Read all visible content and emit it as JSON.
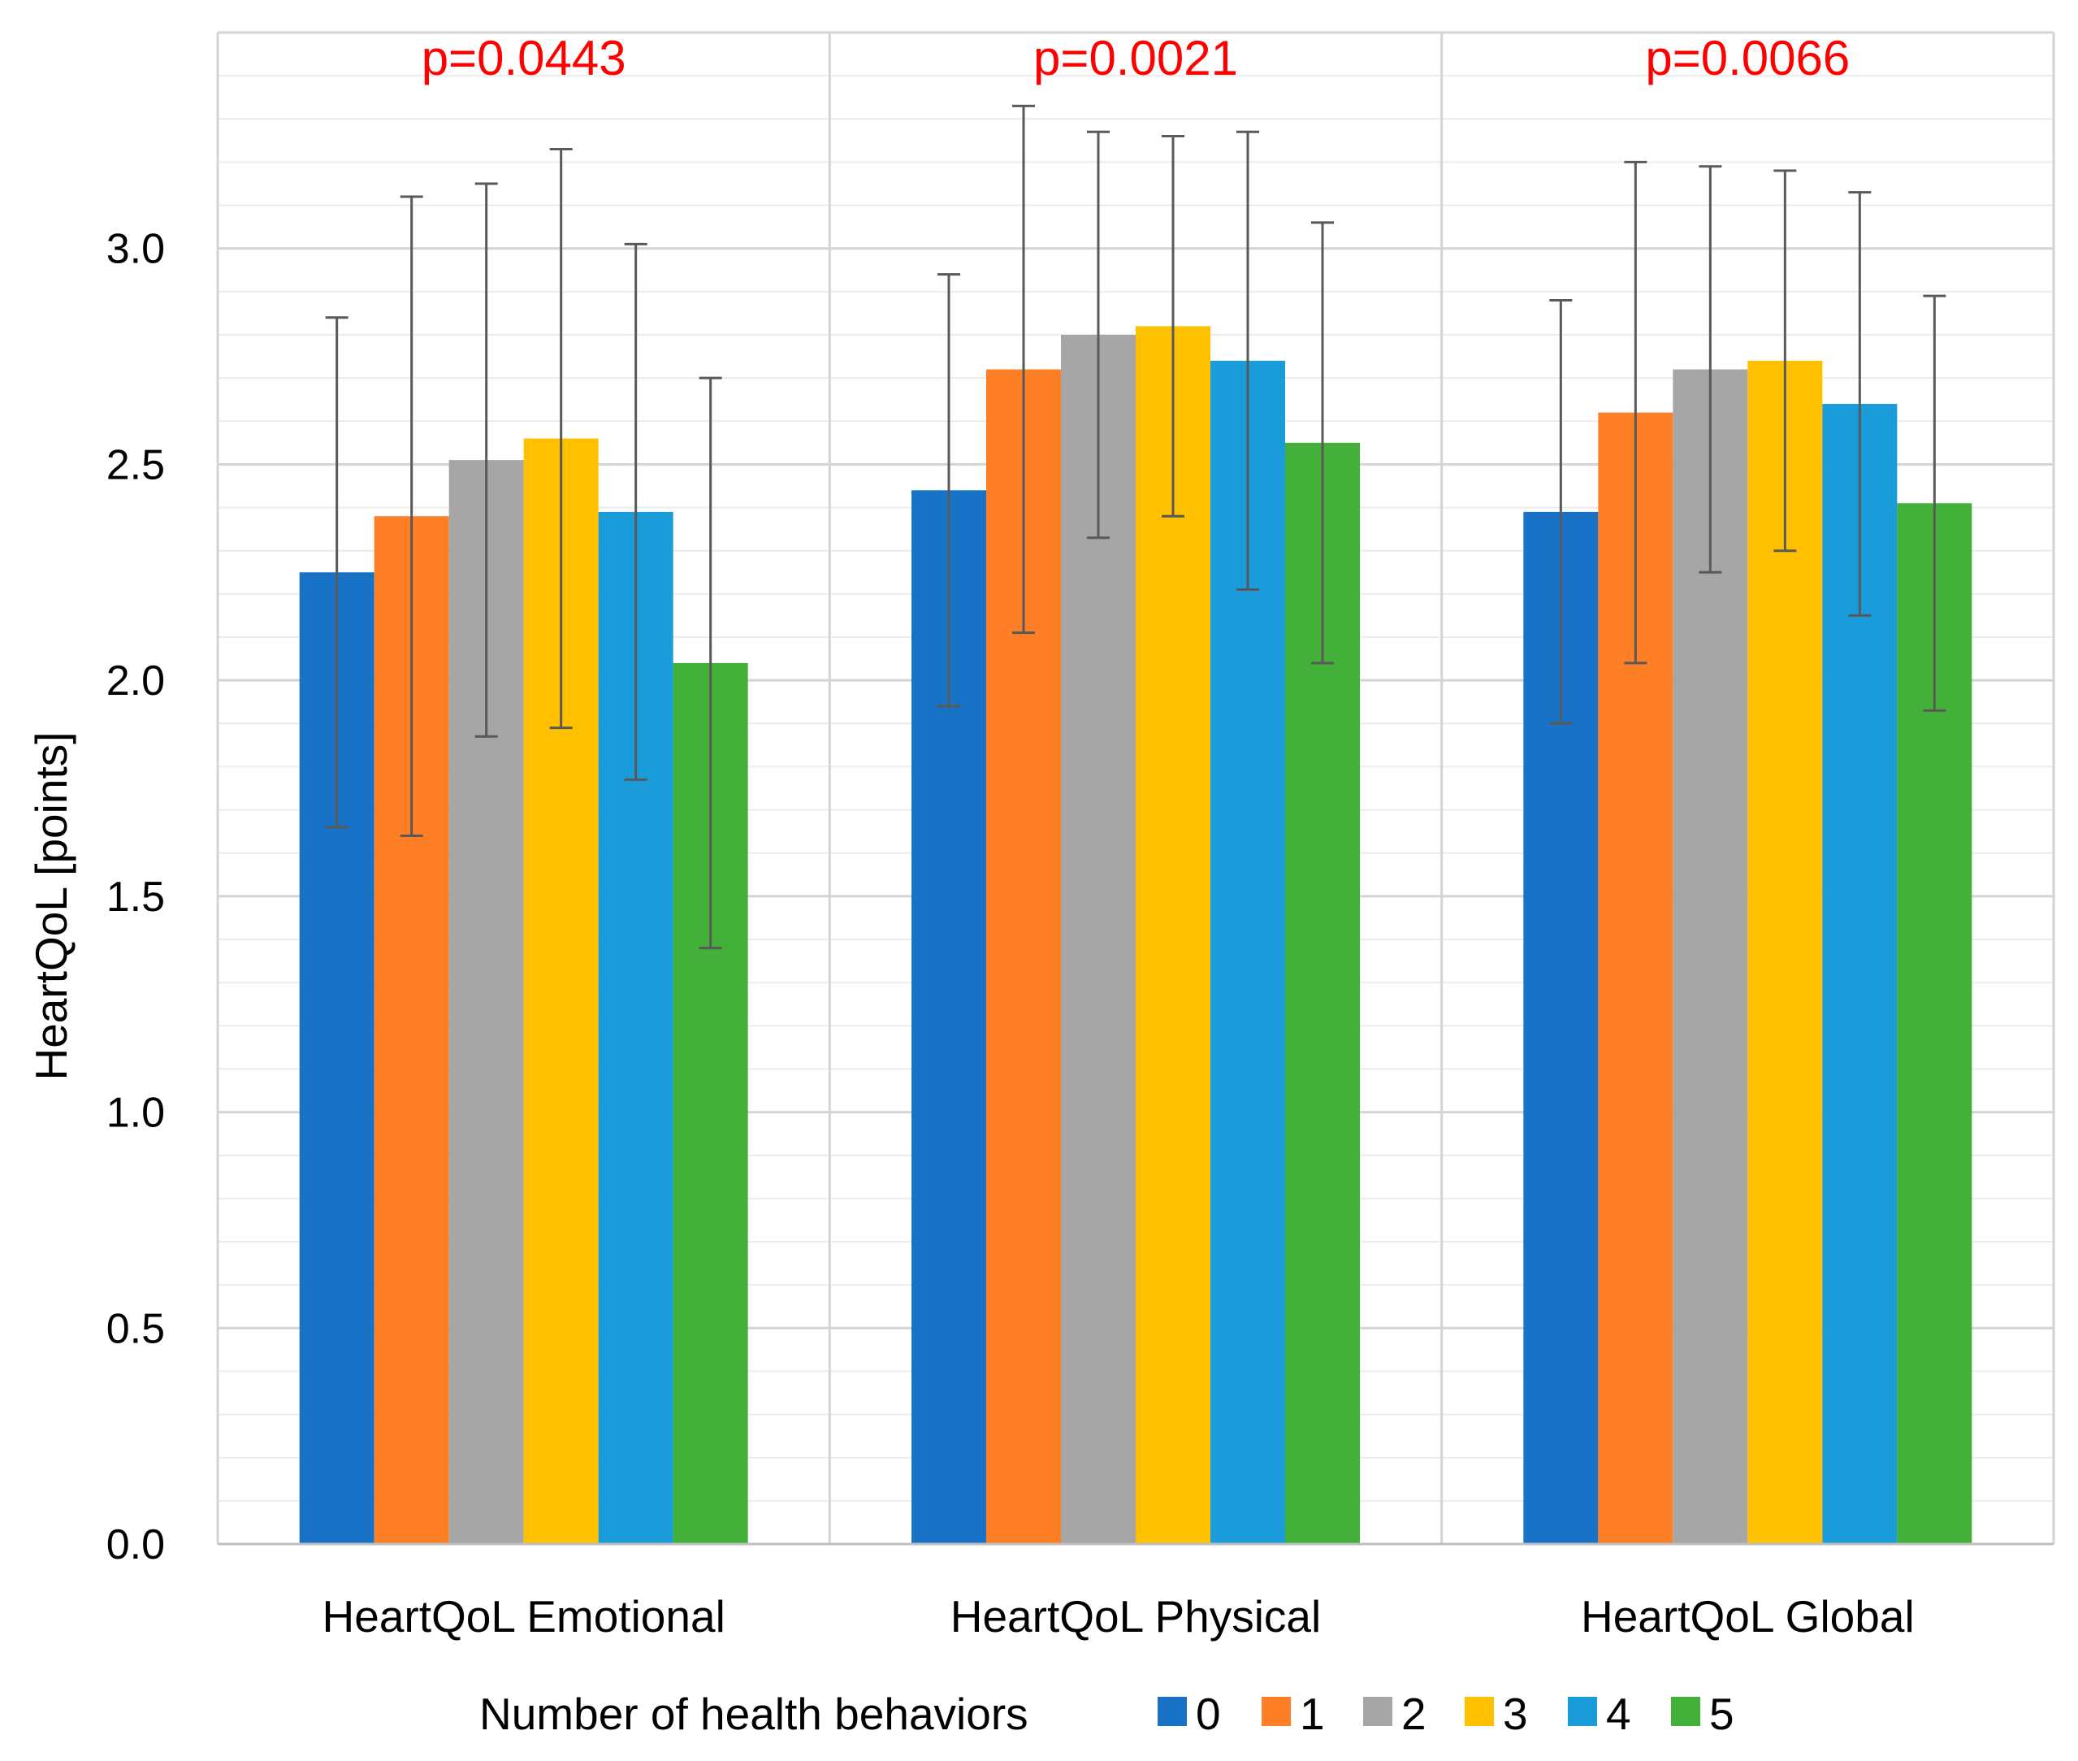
{
  "chart_data": {
    "type": "bar",
    "title": "",
    "xlabel": "",
    "ylabel": "HeartQoL [points]",
    "ylim": [
      0,
      3.5
    ],
    "yticks": [
      0.0,
      0.5,
      1.0,
      1.5,
      2.0,
      2.5,
      3.0
    ],
    "ytick_labels": [
      "0.0",
      "0.5",
      "1.0",
      "1.5",
      "2.0",
      "2.5",
      "3.0"
    ],
    "categories": [
      "HeartQoL Emotional",
      "HeartQoL Physical",
      "HeartQoL Global"
    ],
    "annotations": [
      "p=0.0443",
      "p=0.0021",
      "p=0.0066"
    ],
    "annotation_color": "#FF0000",
    "legend_title": "Number of health behaviors",
    "legend_position": "bottom",
    "series": [
      {
        "name": "0",
        "color": "#1873C6",
        "values": [
          2.25,
          2.44,
          2.39
        ],
        "error": [
          0.59,
          0.5,
          0.49
        ]
      },
      {
        "name": "1",
        "color": "#FF7F27",
        "values": [
          2.38,
          2.72,
          2.62
        ],
        "error": [
          0.74,
          0.61,
          0.58
        ]
      },
      {
        "name": "2",
        "color": "#A6A6A6",
        "values": [
          2.51,
          2.8,
          2.72
        ],
        "error": [
          0.64,
          0.47,
          0.47
        ]
      },
      {
        "name": "3",
        "color": "#FFC000",
        "values": [
          2.56,
          2.82,
          2.74
        ],
        "error": [
          0.67,
          0.44,
          0.44
        ]
      },
      {
        "name": "4",
        "color": "#1A9CDB",
        "values": [
          2.39,
          2.74,
          2.64
        ],
        "error": [
          0.62,
          0.53,
          0.49
        ]
      },
      {
        "name": "5",
        "color": "#43B03A",
        "values": [
          2.04,
          2.55,
          2.41
        ],
        "error": [
          0.66,
          0.51,
          0.48
        ]
      }
    ],
    "grid": true
  }
}
